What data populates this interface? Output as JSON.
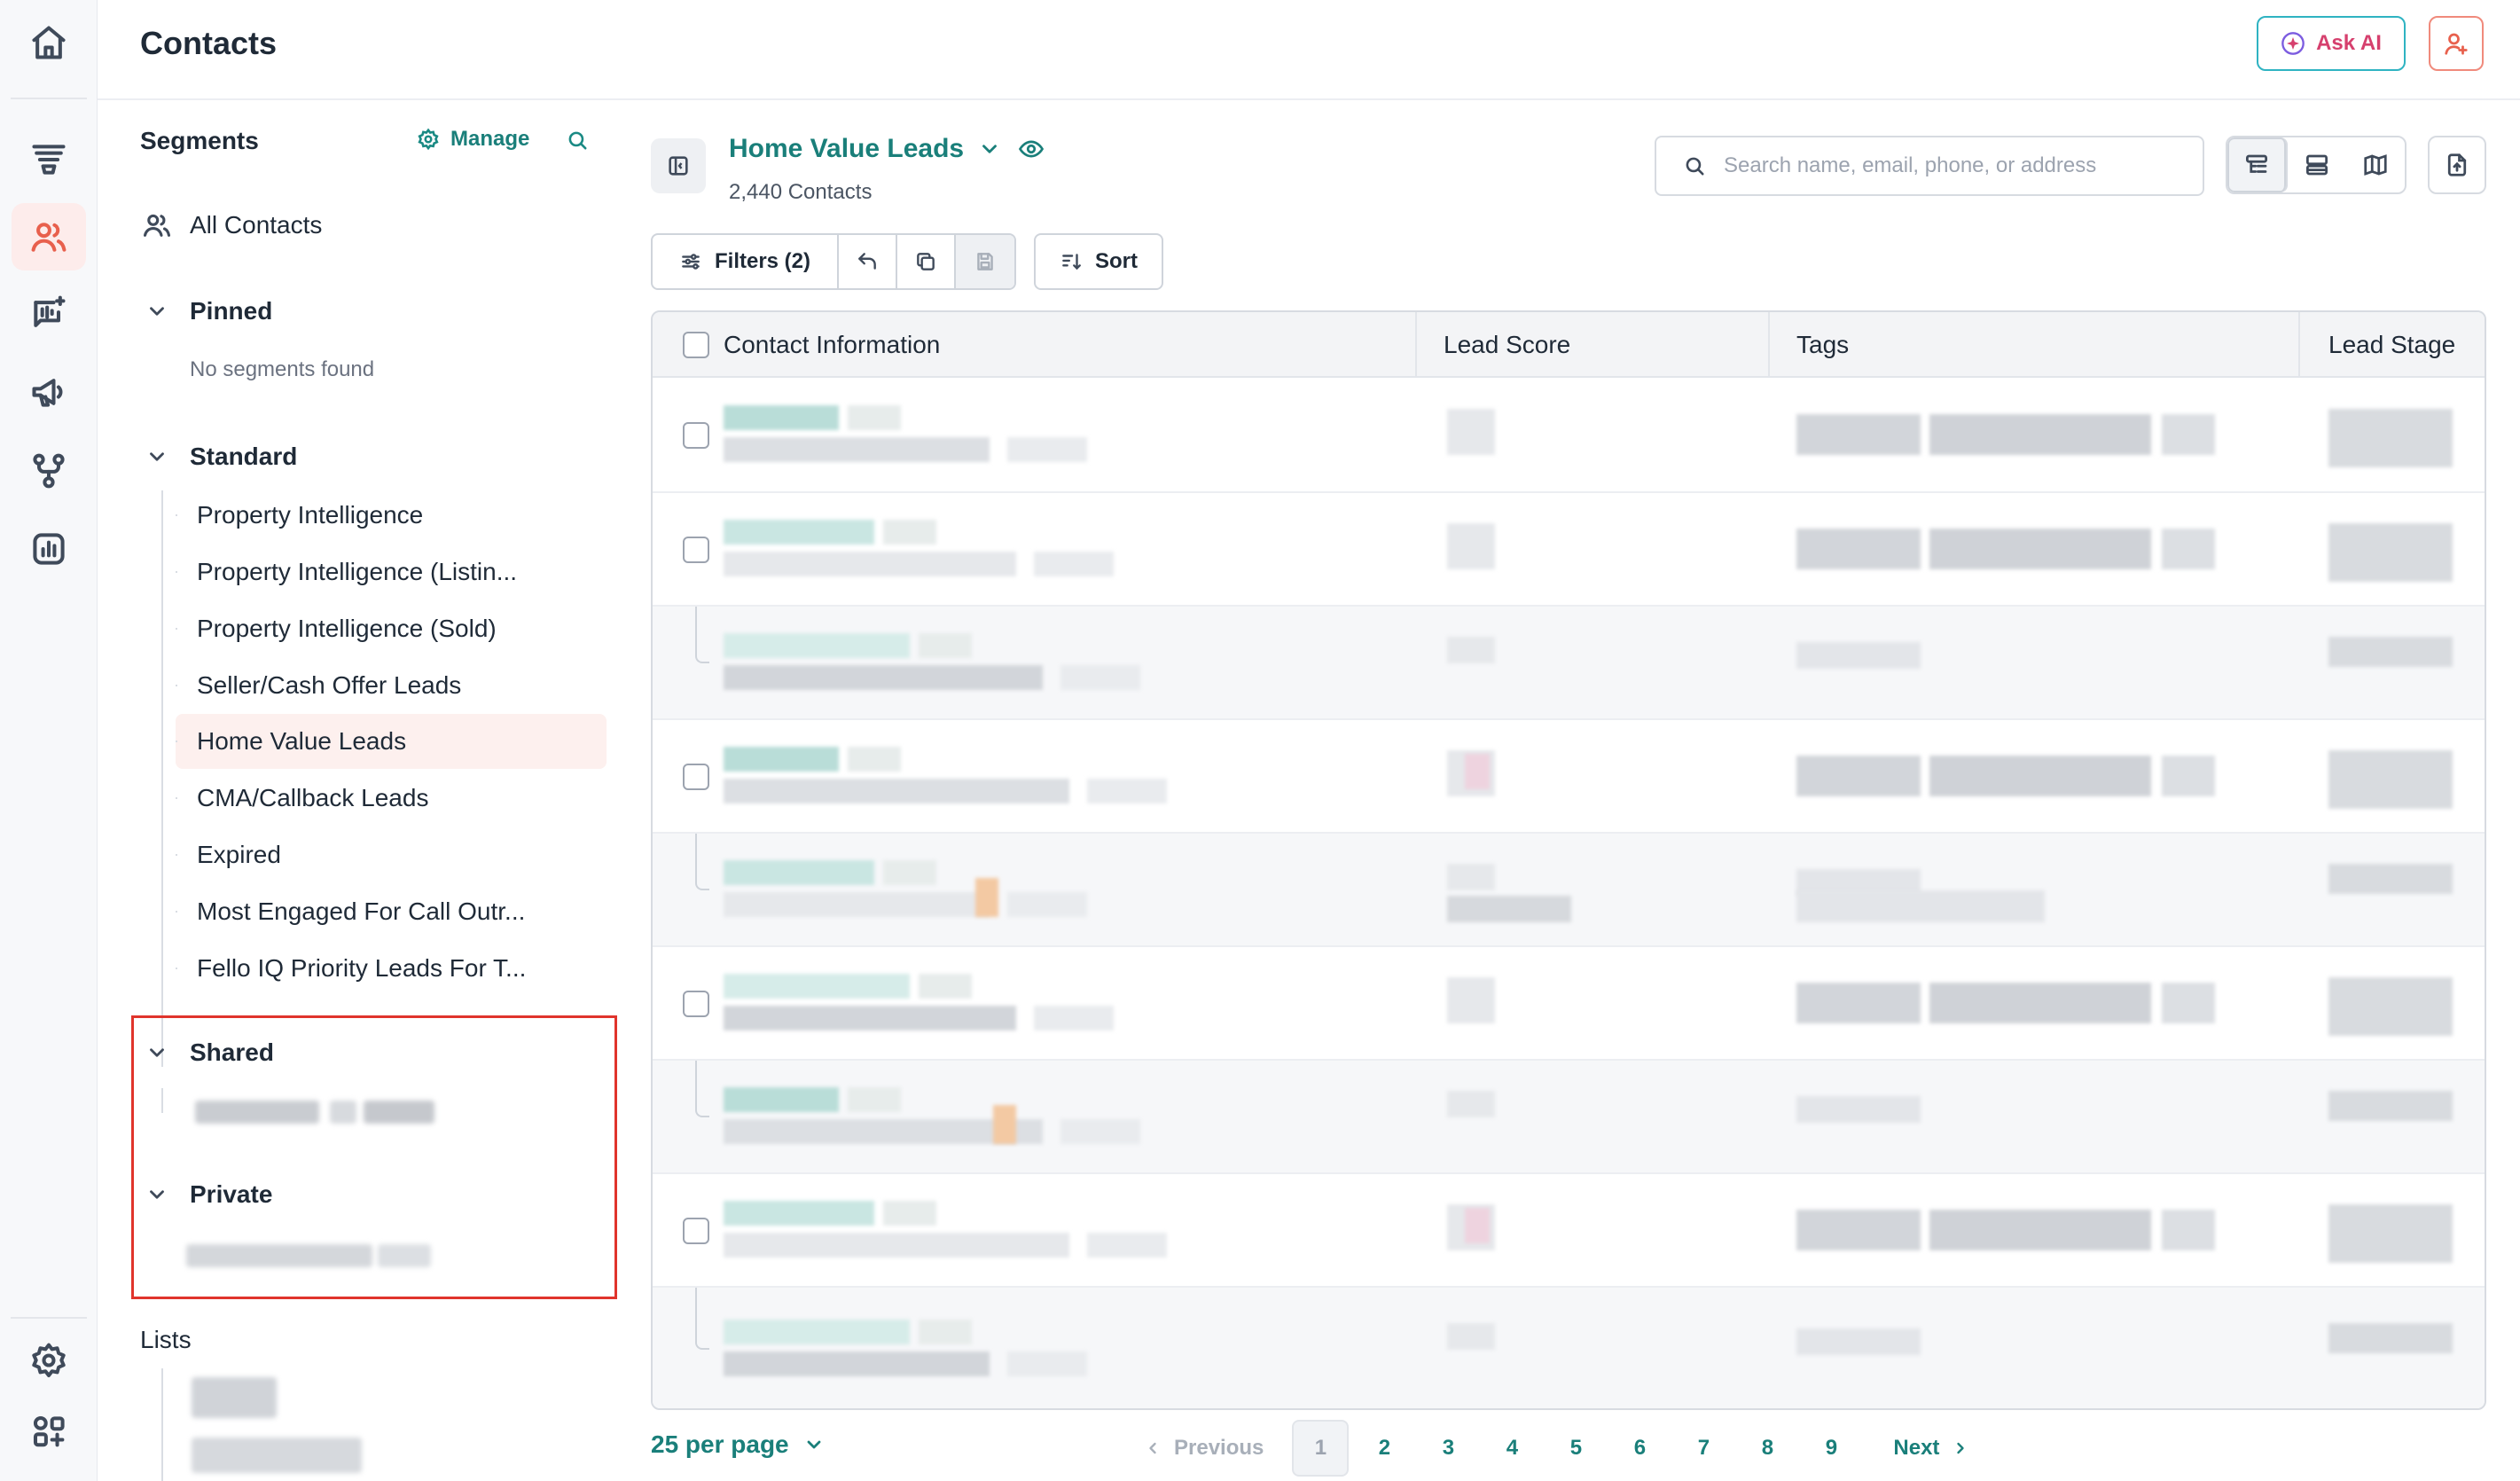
{
  "header": {
    "title": "Contacts",
    "ask_ai_label": "Ask AI"
  },
  "nav": {
    "top_icons": [
      "home-icon",
      "funnel-icon",
      "contacts-icon",
      "voice-ai-icon",
      "megaphone-icon",
      "workflow-icon",
      "reports-icon"
    ],
    "bottom_icons": [
      "settings-icon",
      "apps-icon"
    ],
    "active": "contacts-icon"
  },
  "segments": {
    "title": "Segments",
    "manage_label": "Manage",
    "all_contacts_label": "All Contacts",
    "pinned": {
      "label": "Pinned",
      "empty_text": "No segments found"
    },
    "standard": {
      "label": "Standard",
      "items": [
        "Property Intelligence",
        "Property Intelligence (Listin...",
        "Property Intelligence (Sold)",
        "Seller/Cash Offer Leads",
        "Home Value Leads",
        "CMA/Callback Leads",
        "Expired",
        "Most Engaged For Call Outr...",
        "Fello IQ Priority Leads For T..."
      ],
      "selected_index": 4
    },
    "shared": {
      "label": "Shared"
    },
    "private": {
      "label": "Private"
    },
    "lists_label": "Lists"
  },
  "main": {
    "segment_name": "Home Value Leads",
    "contact_count": "2,440 Contacts",
    "search_placeholder": "Search name, email, phone, or address",
    "filters_label": "Filters (2)",
    "sort_label": "Sort",
    "columns": [
      "Contact Information",
      "Lead Score",
      "Tags",
      "Lead Stage"
    ],
    "per_page_label": "25 per page",
    "pagination": {
      "previous_label": "Previous",
      "next_label": "Next",
      "pages": [
        "1",
        "2",
        "3",
        "4",
        "5",
        "6",
        "7",
        "8",
        "9"
      ],
      "current": "1"
    }
  },
  "colors": {
    "accent": "#1a7f7a",
    "active_nav": "#e8604d",
    "selected_segment_bg": "#fdf0ee",
    "highlight_border": "#e0342c"
  }
}
